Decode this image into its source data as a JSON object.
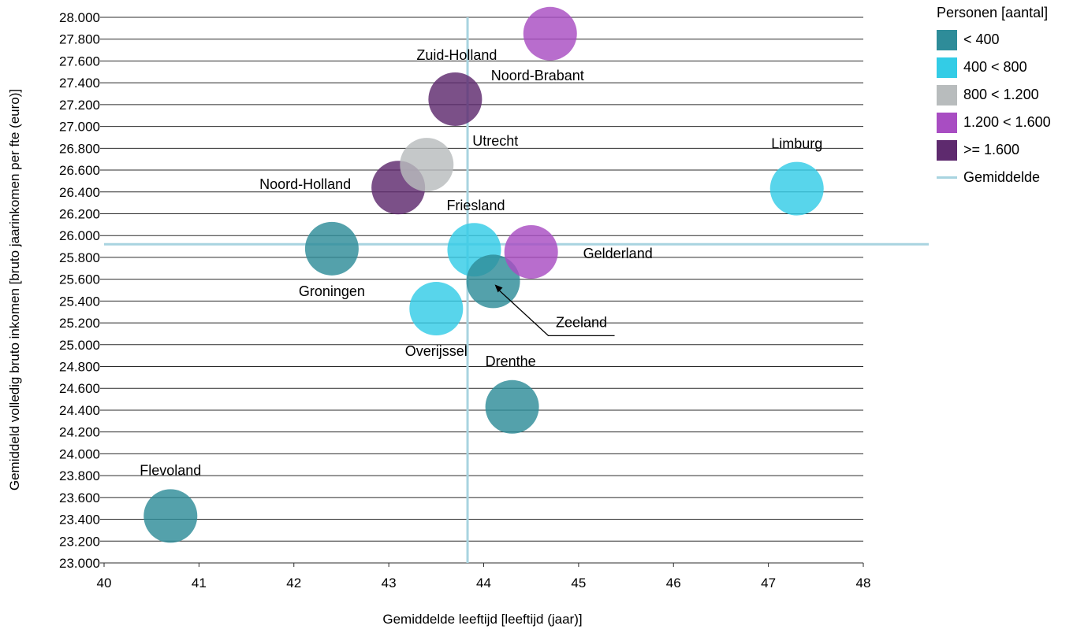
{
  "chart_data": {
    "type": "scatter",
    "title": "",
    "xlabel": "Gemiddelde leeftijd [leeftijd (jaar)]",
    "ylabel": "Gemiddeld volledig bruto inkomen [bruto jaarinkomen per fte (euro)]",
    "xlim": [
      40,
      48
    ],
    "ylim": [
      23000,
      28000
    ],
    "x_ticks": [
      "40",
      "41",
      "42",
      "43",
      "44",
      "45",
      "46",
      "47",
      "48"
    ],
    "y_ticks": [
      "23.000",
      "23.200",
      "23.400",
      "23.600",
      "23.800",
      "24.000",
      "24.200",
      "24.400",
      "24.600",
      "24.800",
      "25.000",
      "25.200",
      "25.400",
      "25.600",
      "25.800",
      "26.000",
      "26.200",
      "26.400",
      "26.600",
      "26.800",
      "27.000",
      "27.200",
      "27.400",
      "27.600",
      "27.800",
      "28.000"
    ],
    "grid": "horizontal",
    "legend_position": "top-right",
    "legend_title": "Personen [aantal]",
    "legend": [
      {
        "label": "< 400",
        "color": "#2E8C99",
        "kind": "box"
      },
      {
        "label": "400 < 800",
        "color": "#33CCE6",
        "kind": "box"
      },
      {
        "label": "800 < 1.200",
        "color": "#B8BCBD",
        "kind": "box"
      },
      {
        "label": "1.200 < 1.600",
        "color": "#A84DC2",
        "kind": "box"
      },
      {
        "label": ">= 1.600",
        "color": "#5E2A6E",
        "kind": "box"
      },
      {
        "label": "Gemiddelde",
        "color": "#A8D4E0",
        "kind": "line"
      }
    ],
    "average": {
      "x": 43.83,
      "y": 25920
    },
    "points": [
      {
        "name": "Flevoland",
        "x": 40.7,
        "y": 23430,
        "group": 0
      },
      {
        "name": "Groningen",
        "x": 42.4,
        "y": 25880,
        "group": 0
      },
      {
        "name": "Noord-Holland",
        "x": 43.1,
        "y": 26440,
        "group": 4
      },
      {
        "name": "Utrecht",
        "x": 43.4,
        "y": 26650,
        "group": 2
      },
      {
        "name": "Overijssel",
        "x": 43.5,
        "y": 25330,
        "group": 1
      },
      {
        "name": "Zuid-Holland",
        "x": 43.7,
        "y": 27250,
        "group": 4
      },
      {
        "name": "Friesland",
        "x": 43.9,
        "y": 25870,
        "group": 1
      },
      {
        "name": "Zeeland",
        "x": 44.1,
        "y": 25580,
        "group": 0
      },
      {
        "name": "Drenthe",
        "x": 44.3,
        "y": 24430,
        "group": 0
      },
      {
        "name": "Gelderland",
        "x": 44.5,
        "y": 25850,
        "group": 3
      },
      {
        "name": "Noord-Brabant",
        "x": 44.7,
        "y": 27850,
        "group": 3
      },
      {
        "name": "Limburg",
        "x": 47.3,
        "y": 26430,
        "group": 1
      }
    ]
  }
}
